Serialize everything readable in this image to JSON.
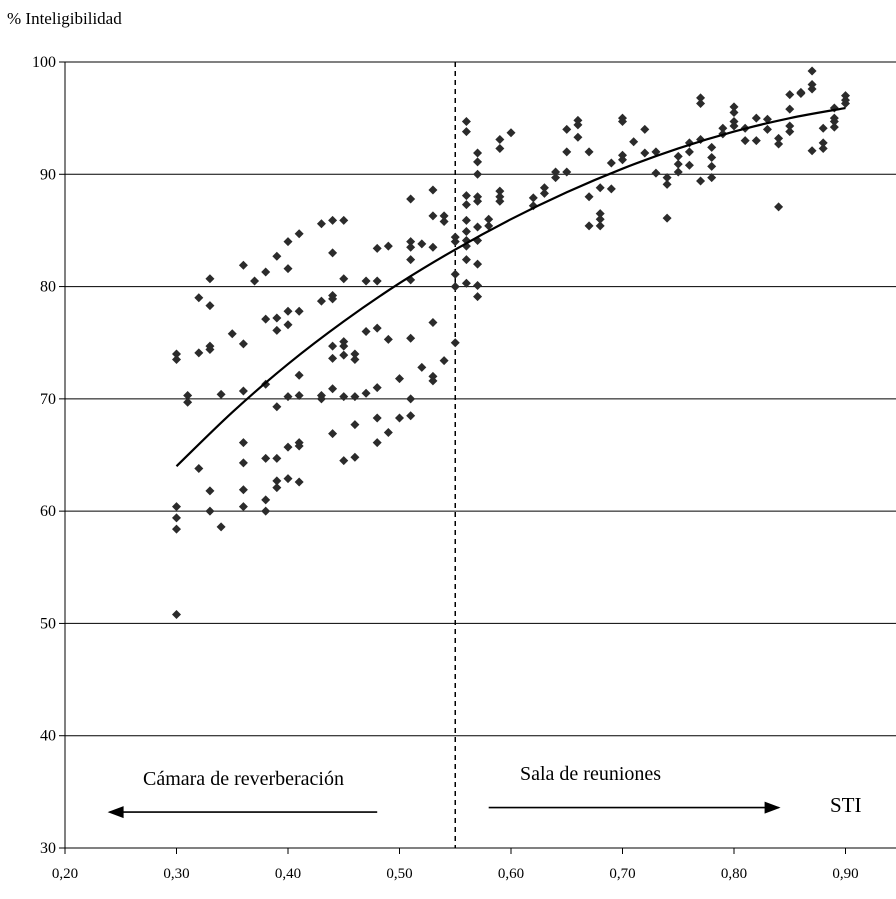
{
  "chart_data": {
    "type": "scatter",
    "title": "",
    "ylabel": "% Inteligibilidad",
    "xlabel": "STI",
    "xlim": [
      0.2,
      0.95
    ],
    "ylim": [
      30,
      100
    ],
    "x_ticks": [
      "0,20",
      "0,30",
      "0,40",
      "0,50",
      "0,60",
      "0,70",
      "0,80",
      "0,90"
    ],
    "x_tick_values": [
      0.2,
      0.3,
      0.4,
      0.5,
      0.6,
      0.7,
      0.8,
      0.9
    ],
    "y_ticks": [
      "30",
      "40",
      "50",
      "60",
      "70",
      "80",
      "90",
      "100"
    ],
    "y_tick_values": [
      30,
      40,
      50,
      60,
      70,
      80,
      90,
      100
    ],
    "grid": "horizontal",
    "marker": "diamond",
    "marker_color": "#2b2b2b",
    "line_color": "#000000",
    "divider_x": 0.55,
    "annotations": {
      "left": "Cámara de reverberación",
      "right": "Sala de reuniones"
    },
    "arrows": [
      {
        "label": "left",
        "direction": "left",
        "from": 0.48,
        "to": 0.24,
        "y": 33.2
      },
      {
        "label": "right",
        "direction": "right",
        "from": 0.58,
        "to": 0.84,
        "y": 33.6
      }
    ],
    "trend_line": [
      [
        0.3,
        64
      ],
      [
        0.35,
        68.8
      ],
      [
        0.4,
        73.1
      ],
      [
        0.45,
        76.9
      ],
      [
        0.5,
        80.3
      ],
      [
        0.55,
        83.3
      ],
      [
        0.6,
        86.0
      ],
      [
        0.65,
        88.4
      ],
      [
        0.7,
        90.5
      ],
      [
        0.75,
        92.3
      ],
      [
        0.8,
        93.8
      ],
      [
        0.85,
        95.0
      ],
      [
        0.9,
        95.9
      ]
    ],
    "points": [
      [
        0.3,
        74
      ],
      [
        0.3,
        73.5
      ],
      [
        0.3,
        60.4
      ],
      [
        0.3,
        59.4
      ],
      [
        0.3,
        58.4
      ],
      [
        0.3,
        50.8
      ],
      [
        0.31,
        70.3
      ],
      [
        0.31,
        69.7
      ],
      [
        0.32,
        79
      ],
      [
        0.32,
        74.1
      ],
      [
        0.32,
        63.8
      ],
      [
        0.33,
        80.7
      ],
      [
        0.33,
        78.3
      ],
      [
        0.33,
        74.7
      ],
      [
        0.33,
        74.4
      ],
      [
        0.33,
        61.8
      ],
      [
        0.33,
        60.0
      ],
      [
        0.34,
        70.4
      ],
      [
        0.34,
        58.6
      ],
      [
        0.35,
        75.8
      ],
      [
        0.36,
        81.9
      ],
      [
        0.36,
        74.9
      ],
      [
        0.36,
        70.7
      ],
      [
        0.36,
        66.1
      ],
      [
        0.36,
        64.3
      ],
      [
        0.36,
        61.9
      ],
      [
        0.36,
        60.4
      ],
      [
        0.37,
        80.5
      ],
      [
        0.38,
        81.3
      ],
      [
        0.38,
        77.1
      ],
      [
        0.38,
        71.3
      ],
      [
        0.38,
        64.7
      ],
      [
        0.38,
        61.0
      ],
      [
        0.38,
        60.0
      ],
      [
        0.39,
        82.7
      ],
      [
        0.39,
        77.2
      ],
      [
        0.39,
        76.1
      ],
      [
        0.39,
        69.3
      ],
      [
        0.39,
        64.7
      ],
      [
        0.39,
        62.7
      ],
      [
        0.39,
        62.1
      ],
      [
        0.4,
        84.0
      ],
      [
        0.4,
        81.6
      ],
      [
        0.4,
        77.8
      ],
      [
        0.4,
        76.6
      ],
      [
        0.4,
        70.2
      ],
      [
        0.4,
        65.7
      ],
      [
        0.4,
        62.9
      ],
      [
        0.41,
        84.7
      ],
      [
        0.41,
        77.8
      ],
      [
        0.41,
        72.1
      ],
      [
        0.41,
        70.3
      ],
      [
        0.41,
        66.1
      ],
      [
        0.41,
        65.8
      ],
      [
        0.41,
        62.6
      ],
      [
        0.43,
        85.6
      ],
      [
        0.43,
        78.7
      ],
      [
        0.43,
        70.3
      ],
      [
        0.43,
        70.0
      ],
      [
        0.44,
        85.9
      ],
      [
        0.44,
        83.0
      ],
      [
        0.44,
        79.2
      ],
      [
        0.44,
        78.9
      ],
      [
        0.44,
        74.7
      ],
      [
        0.44,
        73.6
      ],
      [
        0.44,
        70.9
      ],
      [
        0.44,
        66.9
      ],
      [
        0.45,
        85.9
      ],
      [
        0.45,
        80.7
      ],
      [
        0.45,
        75.1
      ],
      [
        0.45,
        74.7
      ],
      [
        0.45,
        73.9
      ],
      [
        0.45,
        70.2
      ],
      [
        0.45,
        64.5
      ],
      [
        0.46,
        74.0
      ],
      [
        0.46,
        73.5
      ],
      [
        0.46,
        70.2
      ],
      [
        0.46,
        67.7
      ],
      [
        0.46,
        64.8
      ],
      [
        0.47,
        80.5
      ],
      [
        0.47,
        76.0
      ],
      [
        0.47,
        70.5
      ],
      [
        0.48,
        83.4
      ],
      [
        0.48,
        80.5
      ],
      [
        0.48,
        76.3
      ],
      [
        0.48,
        71.0
      ],
      [
        0.48,
        68.3
      ],
      [
        0.48,
        66.1
      ],
      [
        0.49,
        83.6
      ],
      [
        0.49,
        75.3
      ],
      [
        0.49,
        67.0
      ],
      [
        0.5,
        71.8
      ],
      [
        0.5,
        68.3
      ],
      [
        0.51,
        87.8
      ],
      [
        0.51,
        84.0
      ],
      [
        0.51,
        83.5
      ],
      [
        0.51,
        82.4
      ],
      [
        0.51,
        80.6
      ],
      [
        0.51,
        75.4
      ],
      [
        0.51,
        70.0
      ],
      [
        0.51,
        68.5
      ],
      [
        0.52,
        83.8
      ],
      [
        0.52,
        72.8
      ],
      [
        0.53,
        88.6
      ],
      [
        0.53,
        86.3
      ],
      [
        0.53,
        83.5
      ],
      [
        0.53,
        76.8
      ],
      [
        0.53,
        72.0
      ],
      [
        0.53,
        71.6
      ],
      [
        0.54,
        86.3
      ],
      [
        0.54,
        85.8
      ],
      [
        0.54,
        73.4
      ],
      [
        0.55,
        84.4
      ],
      [
        0.55,
        84.0
      ],
      [
        0.55,
        81.1
      ],
      [
        0.55,
        80.0
      ],
      [
        0.55,
        75.0
      ],
      [
        0.56,
        94.7
      ],
      [
        0.56,
        93.8
      ],
      [
        0.56,
        88.1
      ],
      [
        0.56,
        87.3
      ],
      [
        0.56,
        85.9
      ],
      [
        0.56,
        84.9
      ],
      [
        0.56,
        84.1
      ],
      [
        0.56,
        83.6
      ],
      [
        0.56,
        82.4
      ],
      [
        0.56,
        80.3
      ],
      [
        0.57,
        91.9
      ],
      [
        0.57,
        91.1
      ],
      [
        0.57,
        90.0
      ],
      [
        0.57,
        88.0
      ],
      [
        0.57,
        87.6
      ],
      [
        0.57,
        85.3
      ],
      [
        0.57,
        84.1
      ],
      [
        0.57,
        82.0
      ],
      [
        0.57,
        80.1
      ],
      [
        0.57,
        79.1
      ],
      [
        0.58,
        86.0
      ],
      [
        0.58,
        85.4
      ],
      [
        0.59,
        93.1
      ],
      [
        0.59,
        92.3
      ],
      [
        0.59,
        88.5
      ],
      [
        0.59,
        88.0
      ],
      [
        0.59,
        87.6
      ],
      [
        0.6,
        93.7
      ],
      [
        0.62,
        87.9
      ],
      [
        0.62,
        87.2
      ],
      [
        0.63,
        88.8
      ],
      [
        0.63,
        88.3
      ],
      [
        0.64,
        90.2
      ],
      [
        0.64,
        89.7
      ],
      [
        0.65,
        94.0
      ],
      [
        0.65,
        92.0
      ],
      [
        0.65,
        90.2
      ],
      [
        0.66,
        94.8
      ],
      [
        0.66,
        94.4
      ],
      [
        0.66,
        93.3
      ],
      [
        0.67,
        92.0
      ],
      [
        0.67,
        88.0
      ],
      [
        0.67,
        85.4
      ],
      [
        0.68,
        88.8
      ],
      [
        0.68,
        86.5
      ],
      [
        0.68,
        86.0
      ],
      [
        0.68,
        85.4
      ],
      [
        0.69,
        91.0
      ],
      [
        0.69,
        88.7
      ],
      [
        0.7,
        95.0
      ],
      [
        0.7,
        94.7
      ],
      [
        0.7,
        91.7
      ],
      [
        0.7,
        91.3
      ],
      [
        0.71,
        92.9
      ],
      [
        0.72,
        94.0
      ],
      [
        0.72,
        91.9
      ],
      [
        0.73,
        92.0
      ],
      [
        0.73,
        90.1
      ],
      [
        0.74,
        89.7
      ],
      [
        0.74,
        89.1
      ],
      [
        0.74,
        86.1
      ],
      [
        0.75,
        91.6
      ],
      [
        0.75,
        90.9
      ],
      [
        0.75,
        90.2
      ],
      [
        0.76,
        92.8
      ],
      [
        0.76,
        92.0
      ],
      [
        0.76,
        90.8
      ],
      [
        0.77,
        96.8
      ],
      [
        0.77,
        96.3
      ],
      [
        0.77,
        93.1
      ],
      [
        0.77,
        89.4
      ],
      [
        0.78,
        92.4
      ],
      [
        0.78,
        91.5
      ],
      [
        0.78,
        90.7
      ],
      [
        0.78,
        89.7
      ],
      [
        0.79,
        94.1
      ],
      [
        0.79,
        93.6
      ],
      [
        0.8,
        96.0
      ],
      [
        0.8,
        95.5
      ],
      [
        0.8,
        94.7
      ],
      [
        0.8,
        94.3
      ],
      [
        0.81,
        94.1
      ],
      [
        0.81,
        93.0
      ],
      [
        0.82,
        95.0
      ],
      [
        0.82,
        93.0
      ],
      [
        0.83,
        94.9
      ],
      [
        0.83,
        94.0
      ],
      [
        0.84,
        93.2
      ],
      [
        0.84,
        92.7
      ],
      [
        0.84,
        87.1
      ],
      [
        0.85,
        97.1
      ],
      [
        0.85,
        95.8
      ],
      [
        0.85,
        94.3
      ],
      [
        0.85,
        93.8
      ],
      [
        0.86,
        97.3
      ],
      [
        0.86,
        97.2
      ],
      [
        0.87,
        99.2
      ],
      [
        0.87,
        98.0
      ],
      [
        0.87,
        97.6
      ],
      [
        0.87,
        92.1
      ],
      [
        0.88,
        94.1
      ],
      [
        0.88,
        92.8
      ],
      [
        0.88,
        92.3
      ],
      [
        0.89,
        95.9
      ],
      [
        0.89,
        95.0
      ],
      [
        0.89,
        94.7
      ],
      [
        0.89,
        94.2
      ],
      [
        0.9,
        97.0
      ],
      [
        0.9,
        96.6
      ],
      [
        0.9,
        96.3
      ]
    ]
  }
}
